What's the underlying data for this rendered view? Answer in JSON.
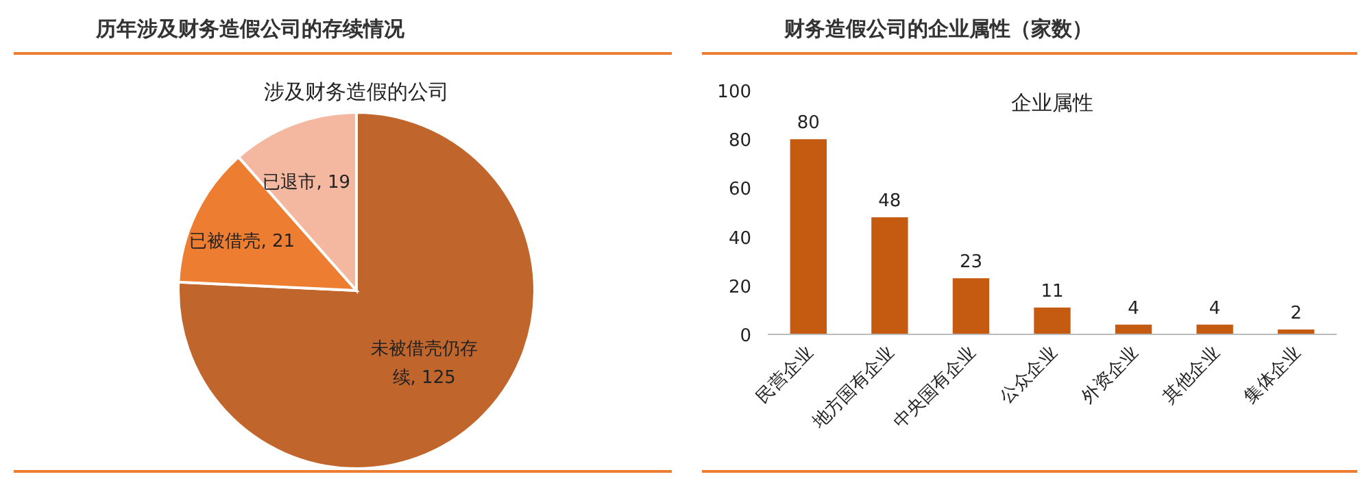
{
  "chart_data": [
    {
      "type": "pie",
      "title": "历年涉及财务造假公司的存续情况",
      "subtitle": "涉及财务造假的公司",
      "categories": [
        "未被借壳仍存续",
        "已被借壳",
        "已退市"
      ],
      "values": [
        125,
        21,
        19
      ],
      "value_labels": [
        ", 125",
        ", 21",
        ", 19"
      ],
      "colors": [
        "#c0652c",
        "#ed7d31",
        "#f4b8a0"
      ]
    },
    {
      "type": "bar",
      "title": "财务造假公司的企业属性（家数）",
      "subtitle": "企业属性",
      "categories": [
        "民营企业",
        "地方国有企业",
        "中央国有企业",
        "公众企业",
        "外资企业",
        "其他企业",
        "集体企业"
      ],
      "values": [
        80,
        48,
        23,
        11,
        4,
        4,
        2
      ],
      "color": "#c55a11",
      "ylim": [
        0,
        100
      ],
      "yticks": [
        0,
        20,
        40,
        60,
        80,
        100
      ],
      "data_labels": true
    }
  ]
}
